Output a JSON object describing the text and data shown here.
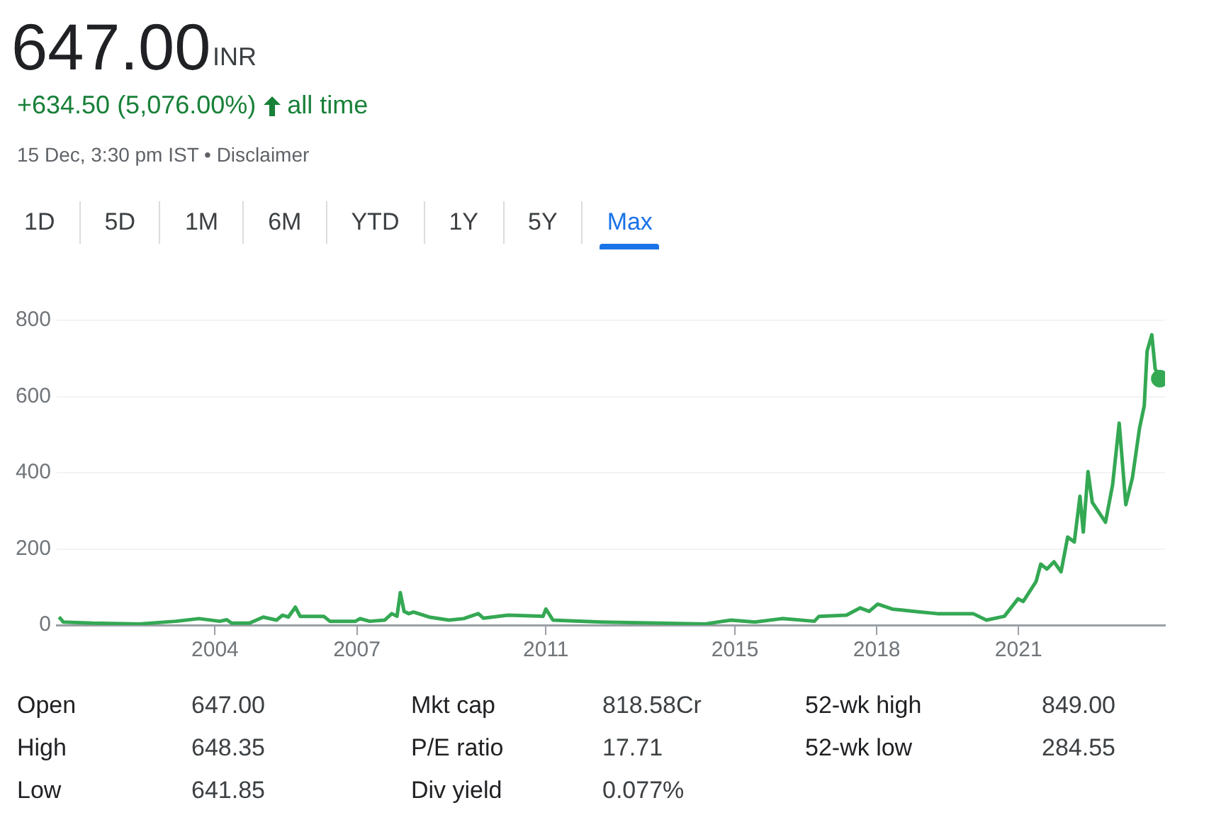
{
  "chart_data": {
    "type": "line",
    "title": "647.00",
    "annotations": [
      "INR",
      "+634.50 (5,076.00%)",
      "all time",
      "15 Dec, 3:30 pm IST • Disclaimer",
      "1D",
      "5D",
      "1M",
      "6M",
      "YTD",
      "1Y",
      "5Y",
      "Max",
      "Open",
      "647.00",
      "Mkt cap",
      "818.58Cr",
      "52-wk high",
      "849.00",
      "High",
      "648.35",
      "P/E ratio",
      "17.71",
      "52-wk low",
      "284.55",
      "Low",
      "641.85",
      "Div yield",
      "0.077%"
    ],
    "x": [
      2000.7,
      2000.79,
      2001.4,
      2002.4,
      2003.17,
      2003.66,
      2004.1,
      2004.25,
      2004.35,
      2004.73,
      2005.02,
      2005.3,
      2005.43,
      2005.55,
      2005.7,
      2005.8,
      2006.3,
      2006.43,
      2006.97,
      2007.07,
      2007.27,
      2007.59,
      2007.74,
      2007.85,
      2007.92,
      2008.0,
      2008.1,
      2008.2,
      2008.53,
      2008.95,
      2009.26,
      2009.57,
      2009.68,
      2010.2,
      2010.94,
      2011.0,
      2011.15,
      2012.17,
      2014.37,
      2014.92,
      2015.42,
      2016.0,
      2016.68,
      2016.78,
      2017.36,
      2017.65,
      2017.84,
      2018.02,
      2018.33,
      2018.8,
      2019.28,
      2020.04,
      2020.32,
      2020.7,
      2020.99,
      2021.1,
      2021.37,
      2021.47,
      2021.6,
      2021.75,
      2021.9,
      2022.04,
      2022.18,
      2022.3,
      2022.37,
      2022.47,
      2022.56,
      2022.7,
      2022.84,
      2022.99,
      2023.13,
      2023.27,
      2023.41,
      2023.56,
      2023.66,
      2023.72,
      2023.82,
      2023.89,
      2023.99
    ],
    "values": [
      21,
      8,
      5,
      3,
      10,
      17,
      10,
      14,
      5,
      5,
      21,
      13,
      26,
      21,
      47,
      23,
      23,
      10,
      10,
      17,
      10,
      13,
      30,
      23,
      85,
      36,
      30,
      34,
      21,
      13,
      17,
      30,
      18,
      26,
      23,
      42,
      13,
      8,
      3,
      13,
      8,
      17,
      10,
      23,
      26,
      45,
      36,
      55,
      42,
      36,
      30,
      30,
      13,
      23,
      69,
      62,
      114,
      160,
      147,
      166,
      140,
      231,
      218,
      338,
      244,
      403,
      322,
      296,
      270,
      368,
      530,
      316,
      387,
      517,
      576,
      719,
      762,
      673,
      647
    ],
    "color": "#34a853",
    "xlim": [
      2000.65,
      2024.1
    ],
    "xticks": [
      2004,
      2007,
      2011,
      2015,
      2018,
      2021
    ],
    "ylim": [
      0,
      800
    ],
    "yticks": [
      0,
      200,
      400,
      600,
      800
    ],
    "grid": "y",
    "legend": false
  }
}
